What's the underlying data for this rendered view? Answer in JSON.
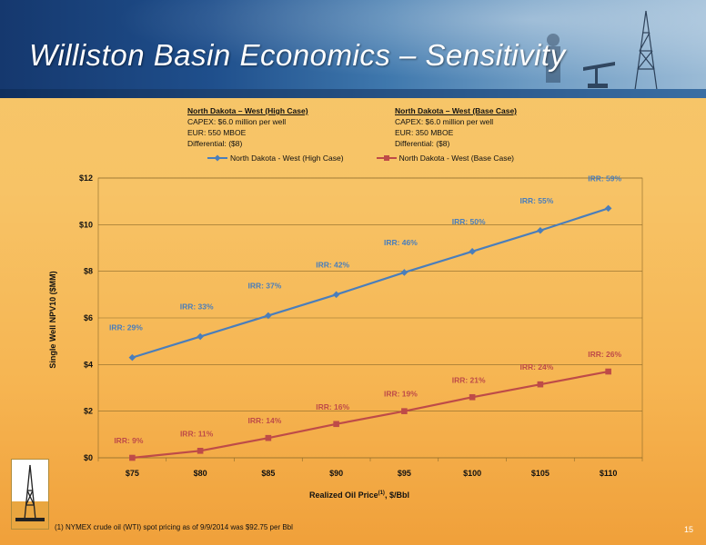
{
  "slide": {
    "title": "Williston Basin Economics – Sensitivity",
    "page_number": "15",
    "footnote": "(1) NYMEX crude oil (WTI) spot pricing as of 9/9/2014 was $92.75 per Bbl"
  },
  "cases": [
    {
      "heading": "North Dakota – West (High Case)",
      "capex": "CAPEX: $6.0 million per well",
      "eur": "EUR: 550 MBOE",
      "differential": "Differential: ($8)"
    },
    {
      "heading": "North Dakota – West (Base Case)",
      "capex": "CAPEX: $6.0 million per well",
      "eur": "EUR: 350 MBOE",
      "differential": "Differential: ($8)"
    }
  ],
  "chart_data": {
    "type": "line",
    "categories": [
      "$75",
      "$80",
      "$85",
      "$90",
      "$95",
      "$100",
      "$105",
      "$110"
    ],
    "ylabel": "Single Well NPV10 ($MM)",
    "xlabel": "Realized Oil Price",
    "xlabel_sup": "(1)",
    "xlabel_suffix": ", $/Bbl",
    "ylim": [
      0,
      12
    ],
    "yticks": [
      "$0",
      "$2",
      "$4",
      "$6",
      "$8",
      "$10",
      "$12"
    ],
    "grid": true,
    "legend_position": "top",
    "series": [
      {
        "name": "North Dakota - West (High Case)",
        "color": "#4a7ebb",
        "values": [
          4.3,
          5.2,
          6.1,
          7.0,
          7.95,
          8.85,
          9.75,
          10.7
        ],
        "labels": [
          "IRR: 29%",
          "IRR: 33%",
          "IRR: 37%",
          "IRR: 42%",
          "IRR: 46%",
          "IRR: 50%",
          "IRR: 55%",
          "IRR: 59%"
        ]
      },
      {
        "name": "North Dakota - West (Base Case)",
        "color": "#be4b48",
        "values": [
          0.0,
          0.3,
          0.85,
          1.45,
          2.0,
          2.6,
          3.15,
          3.7
        ],
        "labels": [
          "IRR: 9%",
          "IRR: 11%",
          "IRR: 14%",
          "IRR: 16%",
          "IRR: 19%",
          "IRR: 21%",
          "IRR: 24%",
          "IRR: 26%"
        ]
      }
    ]
  }
}
